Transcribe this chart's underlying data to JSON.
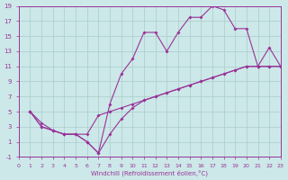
{
  "xlabel": "Windchill (Refroidissement éolien,°C)",
  "xlim": [
    0,
    23
  ],
  "ylim": [
    -1,
    19
  ],
  "xticks": [
    0,
    1,
    2,
    3,
    4,
    5,
    6,
    7,
    8,
    9,
    10,
    11,
    12,
    13,
    14,
    15,
    16,
    17,
    18,
    19,
    20,
    21,
    22,
    23
  ],
  "yticks": [
    -1,
    1,
    3,
    5,
    7,
    9,
    11,
    13,
    15,
    17,
    19
  ],
  "bg_color": "#cce8e8",
  "grid_color": "#aacccc",
  "line_color": "#993399",
  "curve1_x": [
    1,
    2,
    3,
    4,
    5,
    6,
    7,
    8,
    9,
    10,
    11,
    12,
    13,
    14,
    15,
    16,
    17,
    18,
    19,
    20,
    21,
    22,
    23
  ],
  "curve1_y": [
    5,
    3,
    2.5,
    2,
    2,
    1,
    -0.5,
    6,
    10,
    12,
    15.5,
    15.5,
    13,
    15.5,
    17.5,
    17.5,
    19,
    18.5,
    16,
    16,
    11,
    13.5,
    11
  ],
  "curve2_x": [
    1,
    2,
    3,
    4,
    5,
    6,
    7,
    8,
    9,
    10,
    11,
    12,
    13,
    14,
    15,
    16,
    17,
    18,
    19,
    20,
    21,
    22,
    23
  ],
  "curve2_y": [
    5,
    3.5,
    2.5,
    2,
    2,
    2,
    4.5,
    5,
    5.5,
    6,
    6.5,
    7,
    7.5,
    8,
    8.5,
    9,
    9.5,
    10,
    10.5,
    11,
    11,
    11,
    11
  ],
  "curve3_x": [
    1,
    2,
    3,
    4,
    5,
    6,
    7,
    8,
    9,
    10,
    11,
    12,
    13,
    14,
    15,
    16,
    17,
    18,
    19,
    20,
    21,
    22,
    23
  ],
  "curve3_y": [
    5,
    3,
    2.5,
    2,
    2,
    1,
    -0.5,
    2,
    4,
    5.5,
    6.5,
    7,
    7.5,
    8,
    8.5,
    9,
    9.5,
    10,
    10.5,
    11,
    11,
    11,
    11
  ]
}
